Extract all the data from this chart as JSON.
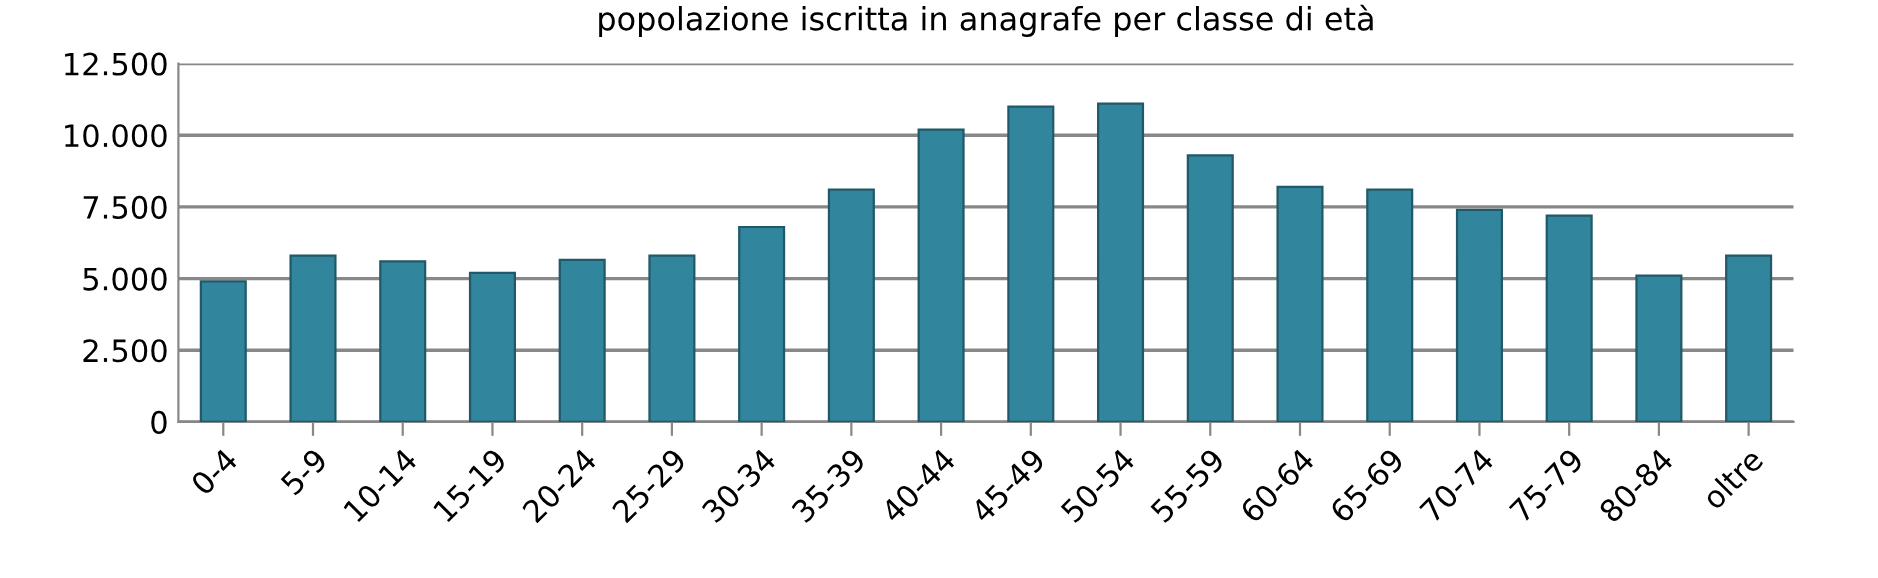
{
  "chart_data": {
    "type": "bar",
    "title": "popolazione iscritta in anagrafe per classe di età",
    "categories": [
      "0-4",
      "5-9",
      "10-14",
      "15-19",
      "20-24",
      "25-29",
      "30-34",
      "35-39",
      "40-44",
      "45-49",
      "50-54",
      "55-59",
      "60-64",
      "65-69",
      "70-74",
      "75-79",
      "80-84",
      "oltre"
    ],
    "values": [
      4900,
      5800,
      5600,
      5200,
      5650,
      5800,
      6800,
      8100,
      10200,
      11000,
      11100,
      9300,
      8200,
      8100,
      7400,
      7200,
      5100,
      5800
    ],
    "color": "#31859c",
    "ylim": [
      0,
      12500
    ],
    "yticks": [
      {
        "value": 0,
        "label": "0"
      },
      {
        "value": 2500,
        "label": "2.500"
      },
      {
        "value": 5000,
        "label": "5.000"
      },
      {
        "value": 7500,
        "label": "7.500"
      },
      {
        "value": 10000,
        "label": "10.000"
      },
      {
        "value": 12500,
        "label": "12.500"
      }
    ],
    "grid": "y"
  }
}
